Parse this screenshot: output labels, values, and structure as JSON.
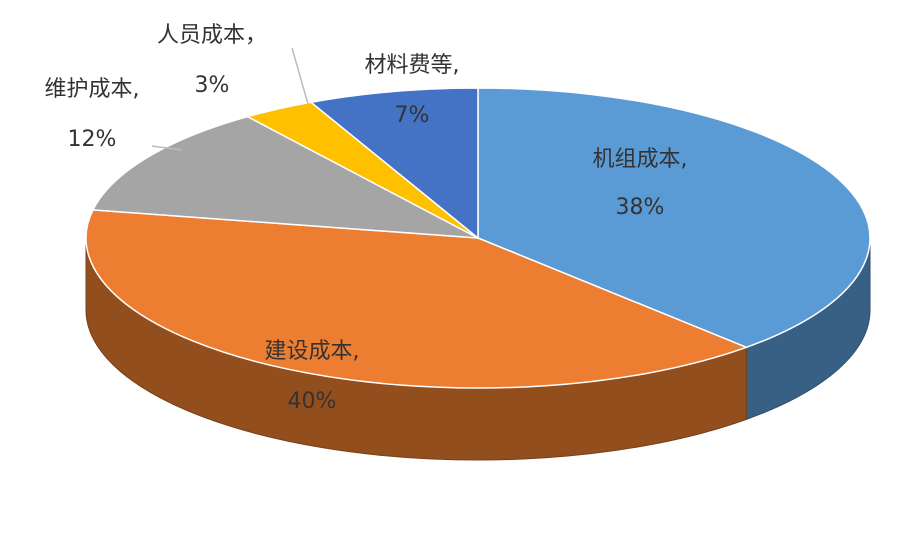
{
  "chart_data": {
    "type": "pie3d",
    "categories": [
      "机组成本,",
      "建设成本,",
      "维护成本,",
      "人员成本，",
      "材料费等,"
    ],
    "values": [
      38,
      40,
      12,
      3,
      7
    ],
    "value_labels": [
      "38%",
      "40%",
      "12%",
      "3%",
      "7%"
    ],
    "colors": [
      "#5b9bd5",
      "#ed7d31",
      "#a5a5a5",
      "#ffc000",
      "#4472c4"
    ]
  }
}
